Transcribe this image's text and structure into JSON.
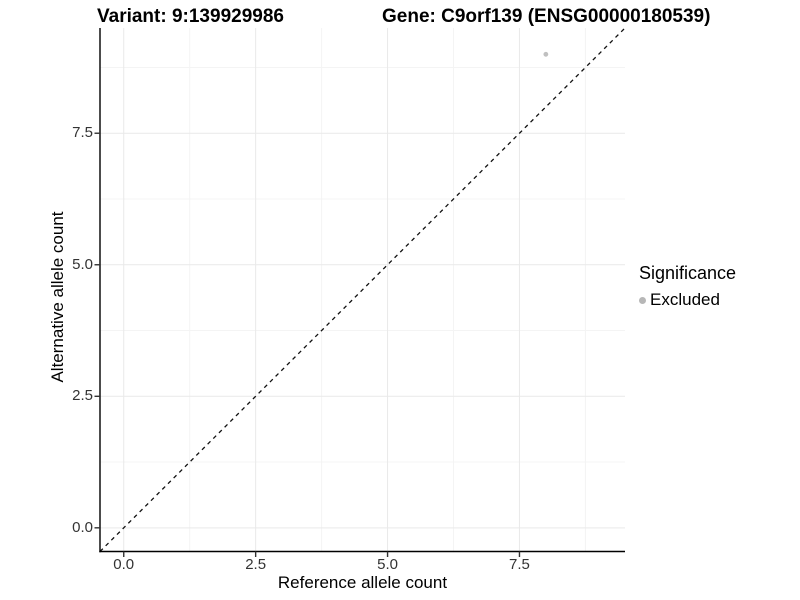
{
  "titles": {
    "variant": "Variant: 9:139929986",
    "gene": "Gene: C9orf139 (ENSG00000180539)"
  },
  "legend": {
    "title": "Significance",
    "items": [
      {
        "label": "Excluded",
        "color": "#bfbfbf"
      }
    ]
  },
  "colors": {
    "point": "#c0c0c0",
    "legend_dot": "#b7b7b7",
    "axis_line": "#000000",
    "tick_mark": "#333333",
    "tick_label": "#333333",
    "grid_major": "#e9e9e9",
    "grid_minor": "#f4f4f4",
    "reference_line": "#111111",
    "background": "#ffffff"
  },
  "chart_data": {
    "type": "scatter",
    "title": "Variant: 9:139929986    Gene: C9orf139 (ENSG00000180539)",
    "xlabel": "Reference allele count",
    "ylabel": "Alternative allele count",
    "xlim": [
      -0.45,
      9.5
    ],
    "ylim": [
      -0.45,
      9.5
    ],
    "x_ticks": [
      {
        "value": 0,
        "label": "0.0"
      },
      {
        "value": 2.5,
        "label": "2.5"
      },
      {
        "value": 5,
        "label": "5.0"
      },
      {
        "value": 7.5,
        "label": "7.5"
      }
    ],
    "y_ticks": [
      {
        "value": 0,
        "label": "0.0"
      },
      {
        "value": 2.5,
        "label": "2.5"
      },
      {
        "value": 5,
        "label": "5.0"
      },
      {
        "value": 7.5,
        "label": "7.5"
      }
    ],
    "grid_minor_positions": [
      1.25,
      3.75,
      6.25,
      8.75
    ],
    "grid": "major+minor",
    "legend_position": "right",
    "reference_line": {
      "type": "identity",
      "style": "dashed",
      "equation": "y = x"
    },
    "series": [
      {
        "name": "Excluded",
        "color": "#c0c0c0",
        "points": [
          {
            "x": 8,
            "y": 9
          }
        ]
      }
    ]
  }
}
